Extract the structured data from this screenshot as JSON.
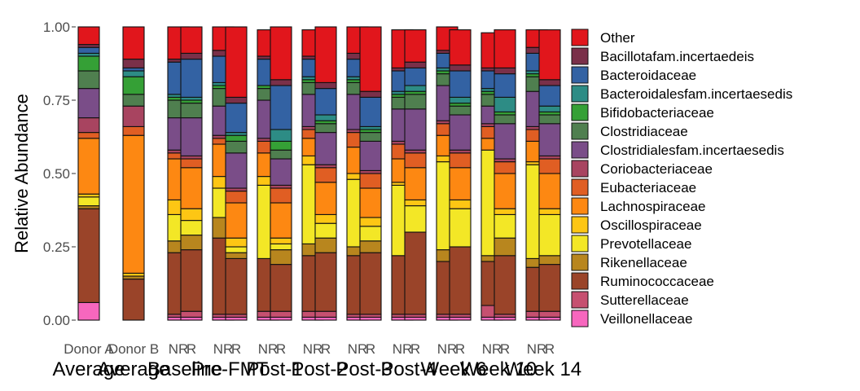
{
  "chart_data": {
    "type": "bar",
    "stacked": true,
    "ylabel": "Relative Abundance",
    "ylim": [
      0,
      1
    ],
    "yticks": [
      "0.00",
      "0.25",
      "0.50",
      "0.75",
      "1.00"
    ],
    "grid": false,
    "legend_position": "right",
    "groups": [
      {
        "label": "Average",
        "bars": [
          "Donor A"
        ]
      },
      {
        "label": "Average",
        "bars": [
          "Donor B"
        ]
      },
      {
        "label": "Baseline",
        "bars": [
          "NR",
          "R"
        ]
      },
      {
        "label": "Pre-FMT",
        "bars": [
          "NR",
          "R"
        ]
      },
      {
        "label": "Post-1",
        "bars": [
          "NR",
          "R"
        ]
      },
      {
        "label": "Post-2",
        "bars": [
          "NR",
          "R"
        ]
      },
      {
        "label": "Post-3",
        "bars": [
          "NR",
          "R"
        ]
      },
      {
        "label": "Post-4",
        "bars": [
          "NR",
          "R"
        ]
      },
      {
        "label": "Week 6",
        "bars": [
          "NR",
          "R"
        ]
      },
      {
        "label": "Week 10",
        "bars": [
          "NR",
          "R"
        ]
      },
      {
        "label": "Week 14",
        "bars": [
          "NR",
          "R"
        ]
      }
    ],
    "series": [
      {
        "name": "Veillonellaceae",
        "color": "#f767be",
        "values": [
          0.06,
          0.0,
          0.01,
          0.01,
          0.01,
          0.01,
          0.01,
          0.01,
          0.01,
          0.01,
          0.01,
          0.01,
          0.01,
          0.01,
          0.01,
          0.01,
          0.01,
          0.01,
          0.01,
          0.01
        ]
      },
      {
        "name": "Sutterellaceae",
        "color": "#c65070",
        "values": [
          0.0,
          0.0,
          0.01,
          0.02,
          0.01,
          0.01,
          0.02,
          0.02,
          0.02,
          0.02,
          0.01,
          0.01,
          0.01,
          0.01,
          0.01,
          0.01,
          0.04,
          0.01,
          0.02,
          0.02
        ]
      },
      {
        "name": "Ruminococcaceae",
        "color": "#9a4429",
        "values": [
          0.32,
          0.14,
          0.21,
          0.21,
          0.26,
          0.19,
          0.18,
          0.16,
          0.19,
          0.2,
          0.2,
          0.21,
          0.2,
          0.28,
          0.18,
          0.23,
          0.15,
          0.2,
          0.15,
          0.16
        ]
      },
      {
        "name": "Rikenellaceae",
        "color": "#b8861e",
        "values": [
          0.01,
          0.01,
          0.04,
          0.05,
          0.07,
          0.02,
          0.0,
          0.05,
          0.04,
          0.05,
          0.03,
          0.04,
          0.0,
          0.0,
          0.04,
          0.0,
          0.02,
          0.06,
          0.03,
          0.03
        ]
      },
      {
        "name": "Prevotellaceae",
        "color": "#f3e726",
        "values": [
          0.03,
          0.0,
          0.09,
          0.05,
          0.1,
          0.02,
          0.25,
          0.02,
          0.27,
          0.05,
          0.23,
          0.05,
          0.24,
          0.09,
          0.3,
          0.13,
          0.36,
          0.08,
          0.32,
          0.14
        ]
      },
      {
        "name": "Oscillospiraceae",
        "color": "#fdc614",
        "values": [
          0.01,
          0.01,
          0.05,
          0.04,
          0.04,
          0.03,
          0.03,
          0.02,
          0.03,
          0.03,
          0.02,
          0.03,
          0.01,
          0.02,
          0.02,
          0.03,
          0.0,
          0.02,
          0.01,
          0.02
        ]
      },
      {
        "name": "Lachnospiraceae",
        "color": "#fd8812",
        "values": [
          0.19,
          0.47,
          0.14,
          0.14,
          0.11,
          0.12,
          0.08,
          0.12,
          0.06,
          0.11,
          0.09,
          0.1,
          0.08,
          0.11,
          0.07,
          0.11,
          0.04,
          0.12,
          0.07,
          0.12
        ]
      },
      {
        "name": "Eubacteriaceae",
        "color": "#e05e23",
        "values": [
          0.02,
          0.03,
          0.02,
          0.03,
          0.02,
          0.04,
          0.04,
          0.05,
          0.03,
          0.05,
          0.05,
          0.05,
          0.05,
          0.05,
          0.04,
          0.05,
          0.04,
          0.04,
          0.04,
          0.05
        ]
      },
      {
        "name": "Coriobacteriaceae",
        "color": "#a84460",
        "values": [
          0.05,
          0.07,
          0.01,
          0.01,
          0.01,
          0.01,
          0.01,
          0.01,
          0.01,
          0.01,
          0.01,
          0.01,
          0.01,
          0.01,
          0.01,
          0.01,
          0.01,
          0.01,
          0.01,
          0.01
        ]
      },
      {
        "name": "Clostridialesfam.incertaesedis",
        "color": "#7a4d88",
        "values": [
          0.1,
          0.0,
          0.11,
          0.13,
          0.1,
          0.12,
          0.13,
          0.09,
          0.11,
          0.11,
          0.12,
          0.1,
          0.11,
          0.14,
          0.12,
          0.12,
          0.06,
          0.12,
          0.12,
          0.11
        ]
      },
      {
        "name": "Clostridiaceae",
        "color": "#4f7f4f",
        "values": [
          0.06,
          0.04,
          0.06,
          0.05,
          0.06,
          0.04,
          0.04,
          0.03,
          0.04,
          0.03,
          0.04,
          0.03,
          0.04,
          0.05,
          0.04,
          0.03,
          0.04,
          0.03,
          0.05,
          0.03
        ]
      },
      {
        "name": "Bifidobacteriaceae",
        "color": "#35a036",
        "values": [
          0.05,
          0.06,
          0.01,
          0.01,
          0.01,
          0.02,
          0.01,
          0.03,
          0.01,
          0.01,
          0.01,
          0.01,
          0.01,
          0.01,
          0.01,
          0.01,
          0.01,
          0.01,
          0.01,
          0.01
        ]
      },
      {
        "name": "Bacteroidalesfam.incertaesedis",
        "color": "#2d8c85",
        "values": [
          0.01,
          0.02,
          0.01,
          0.01,
          0.01,
          0.01,
          0.0,
          0.04,
          0.01,
          0.02,
          0.01,
          0.01,
          0.01,
          0.02,
          0.01,
          0.02,
          0.01,
          0.05,
          0.01,
          0.02
        ]
      },
      {
        "name": "Bacteroidaceae",
        "color": "#3362a3",
        "values": [
          0.02,
          0.01,
          0.11,
          0.13,
          0.09,
          0.1,
          0.09,
          0.15,
          0.06,
          0.09,
          0.06,
          0.1,
          0.07,
          0.06,
          0.05,
          0.09,
          0.06,
          0.08,
          0.06,
          0.07
        ]
      },
      {
        "name": "Bacillotafam.incertaedeis",
        "color": "#7a3049",
        "values": [
          0.01,
          0.03,
          0.01,
          0.02,
          0.02,
          0.02,
          0.01,
          0.02,
          0.01,
          0.02,
          0.02,
          0.02,
          0.01,
          0.02,
          0.01,
          0.02,
          0.01,
          0.02,
          0.02,
          0.02
        ]
      },
      {
        "name": "Other",
        "color": "#e1161c",
        "values": [
          0.06,
          0.11,
          0.11,
          0.09,
          0.08,
          0.24,
          0.09,
          0.18,
          0.09,
          0.19,
          0.09,
          0.22,
          0.13,
          0.11,
          0.08,
          0.12,
          0.12,
          0.13,
          0.06,
          0.17
        ]
      }
    ]
  }
}
